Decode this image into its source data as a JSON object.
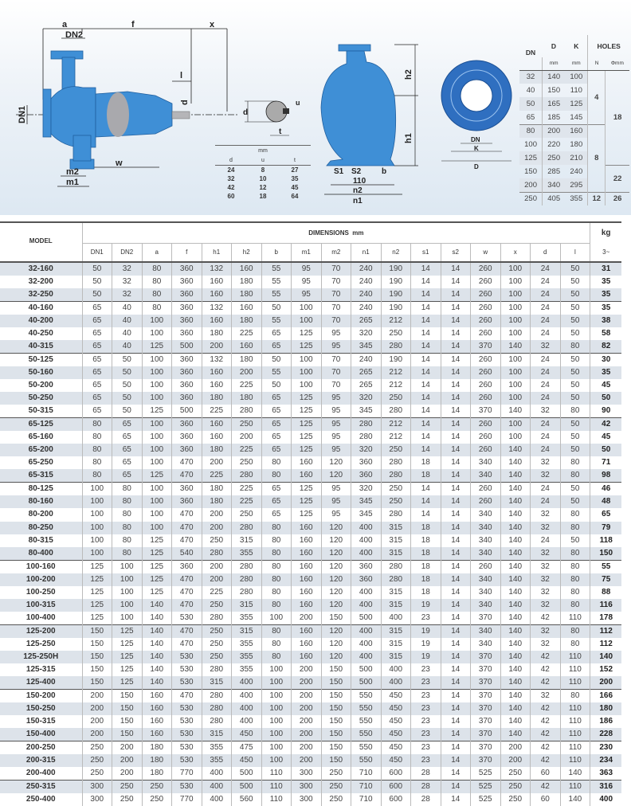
{
  "drawing": {
    "side_labels": {
      "a": "a",
      "f": "f",
      "x": "x",
      "dn2": "DN2",
      "dn1": "DN1",
      "l": "l",
      "d": "d",
      "w": "w",
      "m2": "m2",
      "m1": "m1"
    },
    "key_labels": {
      "d": "d",
      "u": "u",
      "t": "t"
    },
    "front_labels": {
      "h2": "h2",
      "h1": "h1",
      "s1": "S1",
      "s2": "S2",
      "b": "b",
      "dim110": "110",
      "n2": "n2",
      "n1": "n1"
    },
    "flange_labels": {
      "dn": "DN",
      "k": "K",
      "d": "D"
    },
    "pump_color": "#3f8fd6"
  },
  "key_table": {
    "unit": "mm",
    "headers": [
      "d",
      "u",
      "t"
    ],
    "rows": [
      [
        "24",
        "8",
        "27"
      ],
      [
        "32",
        "10",
        "35"
      ],
      [
        "42",
        "12",
        "45"
      ],
      [
        "60",
        "18",
        "64"
      ]
    ]
  },
  "flange_table": {
    "headers": {
      "dn": "DN",
      "d": "D",
      "k": "K",
      "holes": "HOLES",
      "unit_d": "mm",
      "unit_k": "mm",
      "n": "N",
      "phi": "Φmm"
    },
    "rows": [
      [
        "32",
        "140",
        "100"
      ],
      [
        "40",
        "150",
        "110"
      ],
      [
        "50",
        "165",
        "125"
      ],
      [
        "65",
        "185",
        "145"
      ],
      [
        "80",
        "200",
        "160"
      ],
      [
        "100",
        "220",
        "180"
      ],
      [
        "125",
        "250",
        "210"
      ],
      [
        "150",
        "285",
        "240"
      ],
      [
        "200",
        "340",
        "295"
      ],
      [
        "250",
        "405",
        "355"
      ]
    ],
    "holes_n": [
      "4",
      "8",
      "12"
    ],
    "holes_phi": [
      "18",
      "22",
      "26"
    ]
  },
  "main_table": {
    "model_header": "MODEL",
    "dimensions_header": "DIMENSIONS  mm",
    "kg_header": "kg",
    "columns": [
      "DN1",
      "DN2",
      "a",
      "f",
      "h1",
      "h2",
      "b",
      "m1",
      "m2",
      "n1",
      "n2",
      "s1",
      "s2",
      "w",
      "x",
      "d",
      "l"
    ],
    "kg_sub": "3~",
    "groups": [
      [
        [
          "32-160",
          "50",
          "32",
          "80",
          "360",
          "132",
          "160",
          "55",
          "95",
          "70",
          "240",
          "190",
          "14",
          "14",
          "260",
          "100",
          "24",
          "50",
          "31"
        ],
        [
          "32-200",
          "50",
          "32",
          "80",
          "360",
          "160",
          "180",
          "55",
          "95",
          "70",
          "240",
          "190",
          "14",
          "14",
          "260",
          "100",
          "24",
          "50",
          "35"
        ],
        [
          "32-250",
          "50",
          "32",
          "80",
          "360",
          "160",
          "180",
          "55",
          "95",
          "70",
          "240",
          "190",
          "14",
          "14",
          "260",
          "100",
          "24",
          "50",
          "35"
        ]
      ],
      [
        [
          "40-160",
          "65",
          "40",
          "80",
          "360",
          "132",
          "160",
          "50",
          "100",
          "70",
          "240",
          "190",
          "14",
          "14",
          "260",
          "100",
          "24",
          "50",
          "35"
        ],
        [
          "40-200",
          "65",
          "40",
          "100",
          "360",
          "160",
          "180",
          "55",
          "100",
          "70",
          "265",
          "212",
          "14",
          "14",
          "260",
          "100",
          "24",
          "50",
          "38"
        ],
        [
          "40-250",
          "65",
          "40",
          "100",
          "360",
          "180",
          "225",
          "65",
          "125",
          "95",
          "320",
          "250",
          "14",
          "14",
          "260",
          "100",
          "24",
          "50",
          "58"
        ],
        [
          "40-315",
          "65",
          "40",
          "125",
          "500",
          "200",
          "160",
          "65",
          "125",
          "95",
          "345",
          "280",
          "14",
          "14",
          "370",
          "140",
          "32",
          "80",
          "82"
        ]
      ],
      [
        [
          "50-125",
          "65",
          "50",
          "100",
          "360",
          "132",
          "180",
          "50",
          "100",
          "70",
          "240",
          "190",
          "14",
          "14",
          "260",
          "100",
          "24",
          "50",
          "30"
        ],
        [
          "50-160",
          "65",
          "50",
          "100",
          "360",
          "160",
          "200",
          "55",
          "100",
          "70",
          "265",
          "212",
          "14",
          "14",
          "260",
          "100",
          "24",
          "50",
          "35"
        ],
        [
          "50-200",
          "65",
          "50",
          "100",
          "360",
          "160",
          "225",
          "50",
          "100",
          "70",
          "265",
          "212",
          "14",
          "14",
          "260",
          "100",
          "24",
          "50",
          "45"
        ],
        [
          "50-250",
          "65",
          "50",
          "100",
          "360",
          "180",
          "180",
          "65",
          "125",
          "95",
          "320",
          "250",
          "14",
          "14",
          "260",
          "100",
          "24",
          "50",
          "50"
        ],
        [
          "50-315",
          "65",
          "50",
          "125",
          "500",
          "225",
          "280",
          "65",
          "125",
          "95",
          "345",
          "280",
          "14",
          "14",
          "370",
          "140",
          "32",
          "80",
          "90"
        ]
      ],
      [
        [
          "65-125",
          "80",
          "65",
          "100",
          "360",
          "160",
          "250",
          "65",
          "125",
          "95",
          "280",
          "212",
          "14",
          "14",
          "260",
          "100",
          "24",
          "50",
          "42"
        ],
        [
          "65-160",
          "80",
          "65",
          "100",
          "360",
          "160",
          "200",
          "65",
          "125",
          "95",
          "280",
          "212",
          "14",
          "14",
          "260",
          "100",
          "24",
          "50",
          "45"
        ],
        [
          "65-200",
          "80",
          "65",
          "100",
          "360",
          "180",
          "225",
          "65",
          "125",
          "95",
          "320",
          "250",
          "14",
          "14",
          "260",
          "140",
          "24",
          "50",
          "50"
        ],
        [
          "65-250",
          "80",
          "65",
          "100",
          "470",
          "200",
          "250",
          "80",
          "160",
          "120",
          "360",
          "280",
          "18",
          "14",
          "340",
          "140",
          "32",
          "80",
          "71"
        ],
        [
          "65-315",
          "80",
          "65",
          "125",
          "470",
          "225",
          "280",
          "80",
          "160",
          "120",
          "360",
          "280",
          "18",
          "14",
          "340",
          "140",
          "32",
          "80",
          "98"
        ]
      ],
      [
        [
          "80-125",
          "100",
          "80",
          "100",
          "360",
          "180",
          "225",
          "65",
          "125",
          "95",
          "320",
          "250",
          "14",
          "14",
          "260",
          "140",
          "24",
          "50",
          "46"
        ],
        [
          "80-160",
          "100",
          "80",
          "100",
          "360",
          "180",
          "225",
          "65",
          "125",
          "95",
          "345",
          "250",
          "14",
          "14",
          "260",
          "140",
          "24",
          "50",
          "48"
        ],
        [
          "80-200",
          "100",
          "80",
          "100",
          "470",
          "200",
          "250",
          "65",
          "125",
          "95",
          "345",
          "280",
          "14",
          "14",
          "340",
          "140",
          "32",
          "80",
          "65"
        ],
        [
          "80-250",
          "100",
          "80",
          "100",
          "470",
          "200",
          "280",
          "80",
          "160",
          "120",
          "400",
          "315",
          "18",
          "14",
          "340",
          "140",
          "32",
          "80",
          "79"
        ],
        [
          "80-315",
          "100",
          "80",
          "125",
          "470",
          "250",
          "315",
          "80",
          "160",
          "120",
          "400",
          "315",
          "18",
          "14",
          "340",
          "140",
          "24",
          "50",
          "118"
        ],
        [
          "80-400",
          "100",
          "80",
          "125",
          "540",
          "280",
          "355",
          "80",
          "160",
          "120",
          "400",
          "315",
          "18",
          "14",
          "340",
          "140",
          "32",
          "80",
          "150"
        ]
      ],
      [
        [
          "100-160",
          "125",
          "100",
          "125",
          "360",
          "200",
          "280",
          "80",
          "160",
          "120",
          "360",
          "280",
          "18",
          "14",
          "260",
          "140",
          "32",
          "80",
          "55"
        ],
        [
          "100-200",
          "125",
          "100",
          "125",
          "470",
          "200",
          "280",
          "80",
          "160",
          "120",
          "360",
          "280",
          "18",
          "14",
          "340",
          "140",
          "32",
          "80",
          "75"
        ],
        [
          "100-250",
          "125",
          "100",
          "125",
          "470",
          "225",
          "280",
          "80",
          "160",
          "120",
          "400",
          "315",
          "18",
          "14",
          "340",
          "140",
          "32",
          "80",
          "88"
        ],
        [
          "100-315",
          "125",
          "100",
          "140",
          "470",
          "250",
          "315",
          "80",
          "160",
          "120",
          "400",
          "315",
          "19",
          "14",
          "340",
          "140",
          "32",
          "80",
          "116"
        ],
        [
          "100-400",
          "125",
          "100",
          "140",
          "530",
          "280",
          "355",
          "100",
          "200",
          "150",
          "500",
          "400",
          "23",
          "14",
          "370",
          "140",
          "42",
          "110",
          "178"
        ]
      ],
      [
        [
          "125-200",
          "150",
          "125",
          "140",
          "470",
          "250",
          "315",
          "80",
          "160",
          "120",
          "400",
          "315",
          "19",
          "14",
          "340",
          "140",
          "32",
          "80",
          "112"
        ],
        [
          "125-250",
          "150",
          "125",
          "140",
          "470",
          "250",
          "355",
          "80",
          "160",
          "120",
          "400",
          "315",
          "19",
          "14",
          "340",
          "140",
          "32",
          "80",
          "112"
        ],
        [
          "125-250H",
          "150",
          "125",
          "140",
          "530",
          "250",
          "355",
          "80",
          "160",
          "120",
          "400",
          "315",
          "19",
          "14",
          "370",
          "140",
          "42",
          "110",
          "140"
        ],
        [
          "125-315",
          "150",
          "125",
          "140",
          "530",
          "280",
          "355",
          "100",
          "200",
          "150",
          "500",
          "400",
          "23",
          "14",
          "370",
          "140",
          "42",
          "110",
          "152"
        ],
        [
          "125-400",
          "150",
          "125",
          "140",
          "530",
          "315",
          "400",
          "100",
          "200",
          "150",
          "500",
          "400",
          "23",
          "14",
          "370",
          "140",
          "42",
          "110",
          "200"
        ]
      ],
      [
        [
          "150-200",
          "200",
          "150",
          "160",
          "470",
          "280",
          "400",
          "100",
          "200",
          "150",
          "550",
          "450",
          "23",
          "14",
          "370",
          "140",
          "32",
          "80",
          "166"
        ],
        [
          "150-250",
          "200",
          "150",
          "160",
          "530",
          "280",
          "400",
          "100",
          "200",
          "150",
          "550",
          "450",
          "23",
          "14",
          "370",
          "140",
          "42",
          "110",
          "180"
        ],
        [
          "150-315",
          "200",
          "150",
          "160",
          "530",
          "280",
          "400",
          "100",
          "200",
          "150",
          "550",
          "450",
          "23",
          "14",
          "370",
          "140",
          "42",
          "110",
          "186"
        ],
        [
          "150-400",
          "200",
          "150",
          "160",
          "530",
          "315",
          "450",
          "100",
          "200",
          "150",
          "550",
          "450",
          "23",
          "14",
          "370",
          "140",
          "42",
          "110",
          "228"
        ]
      ],
      [
        [
          "200-250",
          "250",
          "200",
          "180",
          "530",
          "355",
          "475",
          "100",
          "200",
          "150",
          "550",
          "450",
          "23",
          "14",
          "370",
          "200",
          "42",
          "110",
          "230"
        ],
        [
          "200-315",
          "250",
          "200",
          "180",
          "530",
          "355",
          "450",
          "100",
          "200",
          "150",
          "550",
          "450",
          "23",
          "14",
          "370",
          "200",
          "42",
          "110",
          "234"
        ],
        [
          "200-400",
          "250",
          "200",
          "180",
          "770",
          "400",
          "500",
          "110",
          "300",
          "250",
          "710",
          "600",
          "28",
          "14",
          "525",
          "250",
          "60",
          "140",
          "363"
        ]
      ],
      [
        [
          "250-315",
          "300",
          "250",
          "250",
          "530",
          "400",
          "500",
          "110",
          "300",
          "250",
          "710",
          "600",
          "28",
          "14",
          "525",
          "250",
          "42",
          "110",
          "316"
        ],
        [
          "250-400",
          "300",
          "250",
          "250",
          "770",
          "400",
          "560",
          "110",
          "300",
          "250",
          "710",
          "600",
          "28",
          "14",
          "525",
          "250",
          "60",
          "140",
          "400"
        ]
      ]
    ]
  }
}
